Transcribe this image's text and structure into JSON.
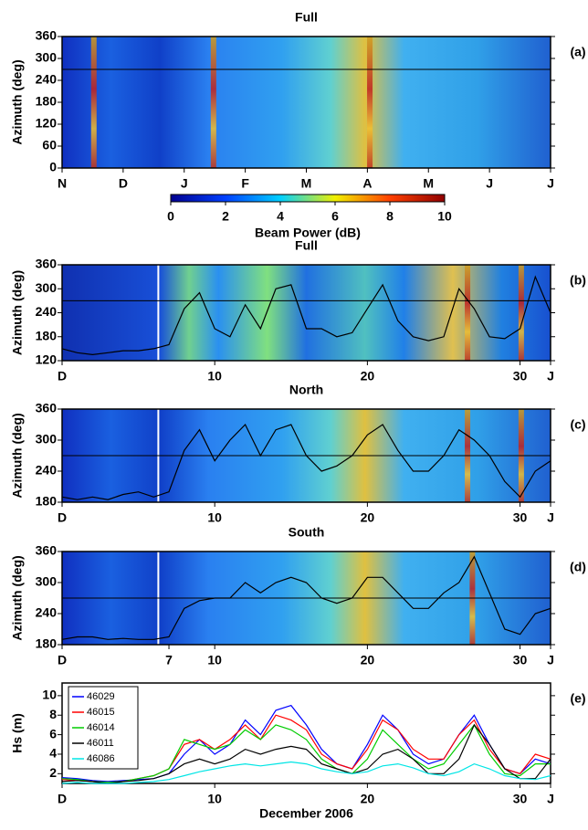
{
  "chart_data": [
    {
      "type": "heatmap",
      "title": "Full",
      "panel_label": "(a)",
      "y_label": "Azimuth  (deg)",
      "categories": [
        "N",
        "D",
        "J",
        "F",
        "M",
        "A",
        "M",
        "J",
        "J"
      ],
      "ylim": [
        0,
        360
      ],
      "yticks": [
        0,
        60,
        120,
        180,
        240,
        300,
        360
      ],
      "reference_line": 270,
      "colorbar": {
        "label": "Beam  Power  (dB)",
        "lim": [
          0,
          10
        ],
        "ticks": [
          0,
          2,
          4,
          6,
          8,
          10
        ]
      }
    },
    {
      "type": "line",
      "title": "Full",
      "panel_label": "(b)",
      "y_label": "Azimuth  (deg)",
      "xlim": [
        0,
        32
      ],
      "xticks": [
        {
          "value": 0,
          "label": "D"
        },
        10,
        20,
        30,
        {
          "value": 32,
          "label": "J"
        }
      ],
      "ylim": [
        120,
        360
      ],
      "yticks": [
        120,
        180,
        240,
        300,
        360
      ],
      "reference_line": 270,
      "x": [
        0,
        1,
        2,
        3,
        4,
        5,
        6,
        7,
        8,
        9,
        10,
        11,
        12,
        13,
        14,
        15,
        16,
        17,
        18,
        19,
        20,
        21,
        22,
        23,
        24,
        25,
        26,
        27,
        28,
        29,
        30,
        31,
        32
      ],
      "values": [
        150,
        140,
        135,
        140,
        145,
        145,
        150,
        160,
        250,
        290,
        200,
        180,
        260,
        200,
        300,
        310,
        200,
        200,
        180,
        190,
        250,
        310,
        220,
        180,
        170,
        180,
        300,
        250,
        180,
        175,
        200,
        330,
        240
      ]
    },
    {
      "type": "line",
      "title": "North",
      "panel_label": "(c)",
      "y_label": "Azimuth  (deg)",
      "xlim": [
        0,
        32
      ],
      "xticks": [
        {
          "value": 0,
          "label": "D"
        },
        10,
        20,
        30,
        {
          "value": 32,
          "label": "J"
        }
      ],
      "ylim": [
        180,
        360
      ],
      "yticks": [
        180,
        240,
        300,
        360
      ],
      "reference_line": 270,
      "x": [
        0,
        1,
        2,
        3,
        4,
        5,
        6,
        7,
        8,
        9,
        10,
        11,
        12,
        13,
        14,
        15,
        16,
        17,
        18,
        19,
        20,
        21,
        22,
        23,
        24,
        25,
        26,
        27,
        28,
        29,
        30,
        31,
        32
      ],
      "values": [
        190,
        185,
        190,
        185,
        195,
        200,
        190,
        200,
        280,
        320,
        260,
        300,
        330,
        270,
        320,
        330,
        270,
        240,
        250,
        270,
        310,
        330,
        280,
        240,
        240,
        270,
        320,
        300,
        270,
        220,
        190,
        240,
        260
      ]
    },
    {
      "type": "line",
      "title": "South",
      "panel_label": "(d)",
      "y_label": "Azimuth  (deg)",
      "xlim": [
        0,
        32
      ],
      "xticks": [
        {
          "value": 0,
          "label": "D"
        },
        7,
        10,
        20,
        30,
        {
          "value": 32,
          "label": "J"
        }
      ],
      "ylim": [
        180,
        360
      ],
      "yticks": [
        180,
        240,
        300,
        360
      ],
      "reference_line": 270,
      "x": [
        0,
        1,
        2,
        3,
        4,
        5,
        6,
        7,
        8,
        9,
        10,
        11,
        12,
        13,
        14,
        15,
        16,
        17,
        18,
        19,
        20,
        21,
        22,
        23,
        24,
        25,
        26,
        27,
        28,
        29,
        30,
        31,
        32
      ],
      "values": [
        190,
        195,
        195,
        190,
        192,
        190,
        190,
        195,
        250,
        265,
        270,
        270,
        300,
        280,
        300,
        310,
        300,
        270,
        260,
        270,
        310,
        310,
        280,
        250,
        250,
        280,
        300,
        350,
        280,
        210,
        200,
        240,
        250
      ]
    },
    {
      "type": "multiline",
      "panel_label": "(e)",
      "y_label": "Hs  (m)",
      "x_label": "December  2006",
      "xlim": [
        0,
        32
      ],
      "xticks": [
        {
          "value": 0,
          "label": "D"
        },
        10,
        20,
        30,
        {
          "value": 32,
          "label": "J"
        }
      ],
      "ylim": [
        1,
        11.3
      ],
      "yticks": [
        2,
        4,
        6,
        8,
        10
      ],
      "x": [
        0,
        1,
        2,
        3,
        4,
        5,
        6,
        7,
        8,
        9,
        10,
        11,
        12,
        13,
        14,
        15,
        16,
        17,
        18,
        19,
        20,
        21,
        22,
        23,
        24,
        25,
        26,
        27,
        28,
        29,
        30,
        31,
        32
      ],
      "series": [
        {
          "name": "46029",
          "color": "#0000ff",
          "values": [
            1.6,
            1.5,
            1.3,
            1.2,
            1.3,
            1.4,
            1.5,
            2.0,
            4.0,
            5.5,
            4.0,
            5.0,
            7.5,
            6.0,
            8.5,
            9.0,
            7.0,
            4.5,
            3.0,
            2.5,
            5.0,
            8.0,
            6.5,
            4.0,
            3.0,
            3.5,
            6.0,
            8.0,
            5.0,
            2.5,
            2.0,
            3.5,
            3.0
          ]
        },
        {
          "name": "46015",
          "color": "#ff0000",
          "values": [
            1.4,
            1.3,
            1.2,
            1.1,
            1.2,
            1.5,
            1.8,
            2.5,
            5.0,
            5.5,
            4.5,
            5.5,
            7.0,
            5.5,
            8.0,
            7.5,
            6.5,
            4.0,
            3.0,
            2.5,
            4.5,
            7.5,
            6.5,
            4.5,
            3.5,
            3.5,
            6.0,
            7.5,
            4.5,
            2.5,
            2.0,
            4.0,
            3.5
          ]
        },
        {
          "name": "46014",
          "color": "#00cc00",
          "values": [
            1.5,
            1.4,
            1.2,
            1.1,
            1.2,
            1.5,
            1.8,
            2.5,
            5.5,
            5.0,
            4.5,
            5.0,
            6.5,
            5.5,
            7.0,
            6.5,
            5.5,
            3.5,
            2.5,
            2.0,
            3.5,
            6.5,
            5.0,
            3.5,
            2.5,
            3.0,
            5.0,
            7.0,
            4.0,
            2.0,
            1.8,
            3.0,
            3.0
          ]
        },
        {
          "name": "46011",
          "color": "#000000",
          "values": [
            1.2,
            1.3,
            1.2,
            1.0,
            1.2,
            1.3,
            1.5,
            2.0,
            3.0,
            3.5,
            3.0,
            3.5,
            4.5,
            4.0,
            4.5,
            4.8,
            4.5,
            3.0,
            2.5,
            2.0,
            2.5,
            4.0,
            4.5,
            3.5,
            2.0,
            2.0,
            3.5,
            7.0,
            5.0,
            2.5,
            1.5,
            1.5,
            3.5
          ]
        },
        {
          "name": "46086",
          "color": "#00e5e5",
          "values": [
            1.0,
            1.1,
            1.0,
            1.0,
            1.0,
            1.1,
            1.2,
            1.4,
            1.8,
            2.2,
            2.5,
            2.8,
            3.0,
            2.8,
            3.0,
            3.2,
            3.0,
            2.5,
            2.2,
            2.0,
            2.2,
            2.8,
            3.0,
            2.6,
            2.0,
            1.8,
            2.2,
            3.0,
            2.5,
            1.8,
            1.5,
            1.4,
            1.8
          ]
        }
      ]
    }
  ]
}
